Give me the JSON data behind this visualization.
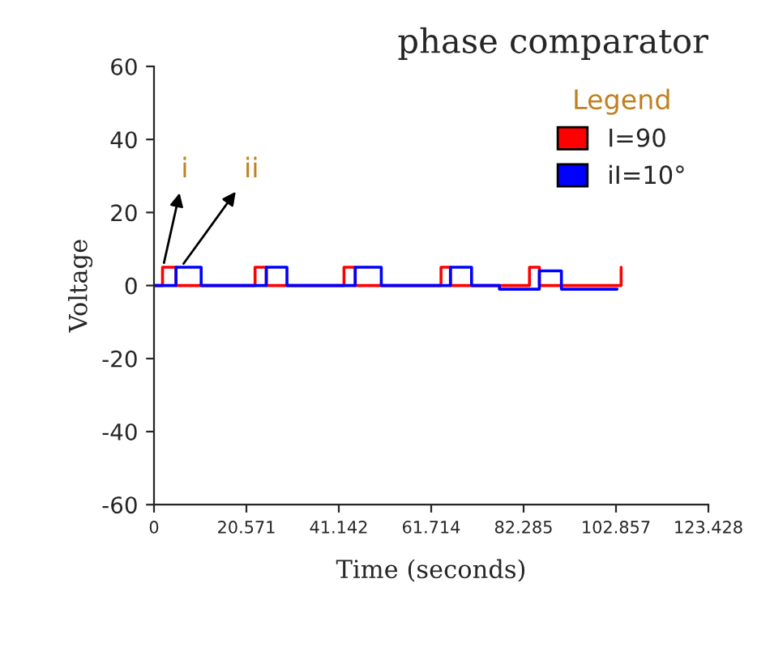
{
  "chart_data": {
    "type": "step",
    "title": "phase comparator",
    "xlabel": "Time (seconds)",
    "ylabel": "Voltage",
    "legend_title": "Legend",
    "series": [
      {
        "name": "I=90",
        "color": "#ff0000",
        "x": [
          0,
          1.9,
          4.9,
          22.5,
          25,
          42.3,
          44.8,
          63.9,
          66,
          83.6,
          85.8,
          104
        ],
        "values": [
          0,
          5,
          0,
          5,
          0,
          5,
          0,
          5,
          0,
          5,
          0,
          5
        ]
      },
      {
        "name": "iI=10°",
        "color": "#0000ff",
        "x": [
          0,
          4.9,
          10.5,
          25,
          29.6,
          44.8,
          50.6,
          66,
          70.7,
          76.9,
          85.8,
          90.7,
          103.1
        ],
        "values": [
          0,
          5,
          0,
          5,
          0,
          5,
          0,
          5,
          0,
          -1,
          4,
          -1,
          -1
        ]
      }
    ],
    "annotations": [
      {
        "text": "i",
        "x": 2,
        "y": 5
      },
      {
        "text": "ii",
        "x": 6,
        "y": 5
      }
    ],
    "xlim": [
      0,
      123.428
    ],
    "xticks": [
      0,
      {
        "value": 20.571,
        "label": "20.571"
      },
      {
        "value": 41.142,
        "label": "41.142"
      },
      {
        "value": 61.714,
        "label": "61.714"
      },
      {
        "value": 82.285,
        "label": "82.285"
      },
      {
        "value": 102.857,
        "label": "102.857"
      },
      {
        "value": 123.428,
        "label": "123.428"
      }
    ],
    "ylim": [
      -60,
      60
    ],
    "yticks": [
      -60,
      -40,
      -20,
      0,
      20,
      40,
      60
    ],
    "grid": false,
    "legend": "top right",
    "line_style": "solid",
    "marker": "none"
  }
}
